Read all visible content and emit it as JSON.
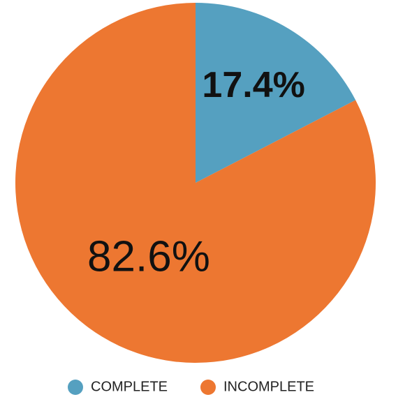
{
  "chart_data": {
    "type": "pie",
    "categories": [
      "COMPLETE",
      "INCOMPLETE"
    ],
    "values": [
      17.4,
      82.6
    ],
    "value_labels": [
      "17.4%",
      "82.6%"
    ],
    "colors": [
      "#55a0c0",
      "#ed7731"
    ],
    "legend": "bottom"
  }
}
